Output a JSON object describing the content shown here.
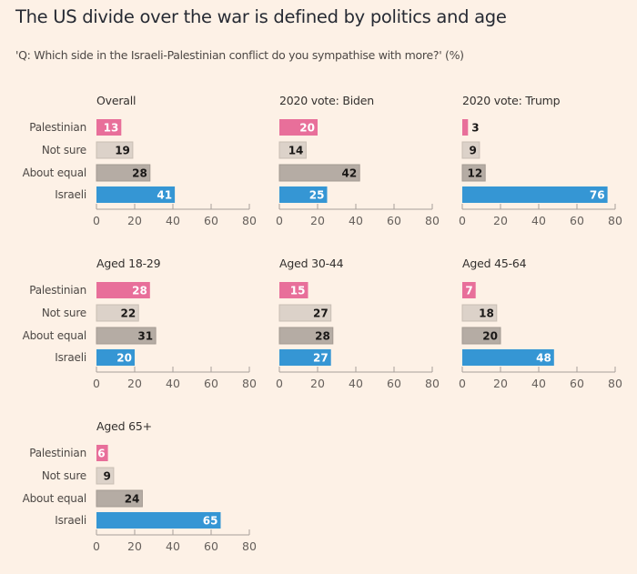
{
  "header": {
    "title": "The US divide over the war is defined by politics and age",
    "subtitle": "'Q: Which side in the Israeli-Palestinian conflict do you sympathise with more?' (%)"
  },
  "colors": {
    "Palestinian": "#e86f9a",
    "Not sure": "#dcd2c9",
    "About equal": "#b5aca4",
    "Israeli": "#3596d4",
    "label_light": "#ffffff",
    "label_dark": "#1a1817"
  },
  "chart_data": {
    "type": "bar",
    "orientation": "horizontal",
    "title": "The US divide over the war is defined by politics and age",
    "subtitle": "'Q: Which side in the Israeli-Palestinian conflict do you sympathise with more?' (%)",
    "categories": [
      "Palestinian",
      "Not sure",
      "About equal",
      "Israeli"
    ],
    "xlim": [
      0,
      80
    ],
    "xticks": [
      0,
      20,
      40,
      60,
      80
    ],
    "grid": false,
    "legend": "none",
    "panels": [
      {
        "title": "Overall",
        "values": [
          13,
          19,
          28,
          41
        ]
      },
      {
        "title": "2020 vote: Biden",
        "values": [
          20,
          14,
          42,
          25
        ]
      },
      {
        "title": "2020 vote: Trump",
        "values": [
          3,
          9,
          12,
          76
        ]
      },
      {
        "title": "Aged 18-29",
        "values": [
          28,
          22,
          31,
          20
        ]
      },
      {
        "title": "Aged 30-44",
        "values": [
          15,
          27,
          28,
          27
        ]
      },
      {
        "title": "Aged 45-64",
        "values": [
          7,
          18,
          20,
          48
        ]
      },
      {
        "title": "Aged 65+",
        "values": [
          6,
          9,
          24,
          65
        ]
      }
    ]
  }
}
